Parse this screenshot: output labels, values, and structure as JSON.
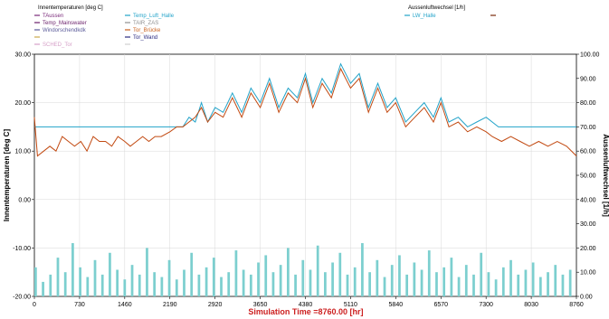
{
  "chart_data": {
    "type": "line",
    "left_legend_title": "Innentemperaturen  [deg C]",
    "right_legend_title": "Aussenluftwechsel  [1/h]",
    "left_legend": [
      {
        "label": "TAussen",
        "color": "#7a2a7a"
      },
      {
        "label": "Temp_Luft_Halle",
        "color": "#22a3c9"
      },
      {
        "label": "Temp_Mainswater",
        "color": "#6a1f6a"
      },
      {
        "label": "TAIR_ZAS",
        "color": "#909090"
      },
      {
        "label": "Windorschendkdk",
        "color": "#5a5a99"
      },
      {
        "label": "Tor_Brücke",
        "color": "#c9601c"
      },
      {
        "label": "",
        "color": "#c9a84c"
      },
      {
        "label": "Tor_Wand",
        "color": "#2a2a80"
      },
      {
        "label": "SCHED_Tor",
        "color": "#d6a0c8"
      },
      {
        "label": "",
        "color": "#d0d0d0"
      }
    ],
    "right_legend": [
      {
        "label": "LW_Halle",
        "color": "#22a3c9"
      },
      {
        "label": "",
        "color": "#7a2a0a"
      }
    ],
    "ylabel_left": "Innentemperaturen [deg C]",
    "ylabel_right": "Aussenluftwechsel [1/h]",
    "xlabel": "Simulation Time =8760.00 [hr]",
    "xlim": [
      0,
      8760
    ],
    "ylim_left": [
      -20,
      30
    ],
    "ylim_right": [
      0,
      100
    ],
    "x_ticks": [
      0,
      730,
      1460,
      2190,
      2920,
      3650,
      4380,
      5110,
      5840,
      6570,
      7300,
      8030,
      8760
    ],
    "y_ticks_left": [
      "-20.00",
      "-10.00",
      "0.00",
      "10.00",
      "20.00",
      "30.00"
    ],
    "y_ticks_right": [
      "0.00",
      "10.00",
      "20.00",
      "30.00",
      "40.00",
      "50.00",
      "60.00",
      "70.00",
      "80.00",
      "90.00",
      "100.00"
    ],
    "series": [
      {
        "name": "Temp_Luft_Halle",
        "color": "#22a3c9",
        "axis": "left",
        "x": [
          0,
          200,
          400,
          600,
          800,
          1000,
          1200,
          1400,
          1600,
          1800,
          2000,
          2190,
          2300,
          2400,
          2500,
          2600,
          2700,
          2800,
          2920,
          3050,
          3200,
          3350,
          3500,
          3650,
          3800,
          3950,
          4100,
          4250,
          4380,
          4500,
          4650,
          4800,
          4950,
          5110,
          5250,
          5400,
          5550,
          5700,
          5840,
          6000,
          6150,
          6300,
          6450,
          6570,
          6700,
          6850,
          7000,
          7150,
          7300,
          7500,
          7700,
          7900,
          8100,
          8300,
          8500,
          8760
        ],
        "y": [
          15,
          15,
          15,
          15,
          15,
          15,
          15,
          15,
          15,
          15,
          15,
          15,
          15,
          15,
          17,
          16,
          20,
          16,
          19,
          18,
          22,
          18,
          23,
          20,
          25,
          19,
          23,
          21,
          26,
          20,
          25,
          22,
          28,
          24,
          26,
          19,
          24,
          19,
          21,
          16,
          18,
          20,
          17,
          21,
          16,
          17,
          15,
          16,
          17,
          15,
          15,
          15,
          15,
          15,
          15,
          15
        ]
      },
      {
        "name": "Tor_Brücke",
        "color": "#c24a12",
        "axis": "left",
        "x": [
          0,
          50,
          150,
          250,
          350,
          450,
          550,
          650,
          750,
          850,
          950,
          1050,
          1150,
          1250,
          1350,
          1460,
          1550,
          1650,
          1750,
          1850,
          1950,
          2050,
          2190,
          2300,
          2400,
          2500,
          2600,
          2700,
          2800,
          2920,
          3050,
          3200,
          3350,
          3500,
          3650,
          3800,
          3950,
          4100,
          4250,
          4380,
          4500,
          4650,
          4800,
          4950,
          5110,
          5250,
          5400,
          5550,
          5700,
          5840,
          6000,
          6150,
          6300,
          6450,
          6570,
          6700,
          6850,
          7000,
          7150,
          7300,
          7400,
          7550,
          7700,
          7850,
          8000,
          8150,
          8300,
          8450,
          8600,
          8760
        ],
        "y": [
          17,
          9,
          10,
          11,
          10,
          13,
          12,
          11,
          12,
          10,
          13,
          12,
          12,
          11,
          13,
          12,
          11,
          12,
          13,
          12,
          13,
          13,
          14,
          15,
          15,
          16,
          17,
          19,
          16,
          18,
          17,
          21,
          17,
          22,
          19,
          24,
          18,
          22,
          20,
          25,
          19,
          24,
          21,
          27,
          23,
          25,
          18,
          23,
          18,
          20,
          15,
          17,
          19,
          16,
          20,
          15,
          16,
          14,
          15,
          14,
          13,
          12,
          13,
          12,
          11,
          12,
          11,
          12,
          11,
          9
        ]
      },
      {
        "name": "LW_Halle",
        "color": "#7ccfcf",
        "axis": "right",
        "style": "bars",
        "bin_width": 40,
        "x": [
          0,
          120,
          240,
          360,
          480,
          600,
          720,
          840,
          960,
          1080,
          1200,
          1320,
          1440,
          1560,
          1680,
          1800,
          1920,
          2040,
          2160,
          2280,
          2400,
          2520,
          2640,
          2760,
          2880,
          3000,
          3120,
          3240,
          3360,
          3480,
          3600,
          3720,
          3840,
          3960,
          4080,
          4200,
          4320,
          4440,
          4560,
          4680,
          4800,
          4920,
          5040,
          5160,
          5280,
          5400,
          5520,
          5640,
          5760,
          5880,
          6000,
          6120,
          6240,
          6360,
          6480,
          6600,
          6720,
          6840,
          6960,
          7080,
          7200,
          7320,
          7440,
          7560,
          7680,
          7800,
          7920,
          8040,
          8160,
          8280,
          8400,
          8520,
          8640
        ],
        "y": [
          12,
          6,
          9,
          16,
          10,
          22,
          12,
          8,
          15,
          9,
          18,
          11,
          7,
          13,
          9,
          20,
          10,
          8,
          15,
          7,
          11,
          18,
          9,
          12,
          16,
          8,
          10,
          19,
          11,
          9,
          14,
          17,
          10,
          13,
          20,
          9,
          15,
          11,
          21,
          10,
          14,
          18,
          9,
          12,
          22,
          10,
          15,
          8,
          13,
          17,
          9,
          14,
          11,
          19,
          10,
          12,
          16,
          8,
          13,
          9,
          18,
          10,
          7,
          12,
          15,
          9,
          11,
          14,
          8,
          10,
          13,
          9,
          11
        ]
      }
    ],
    "grid": true,
    "legend_position": "top"
  }
}
